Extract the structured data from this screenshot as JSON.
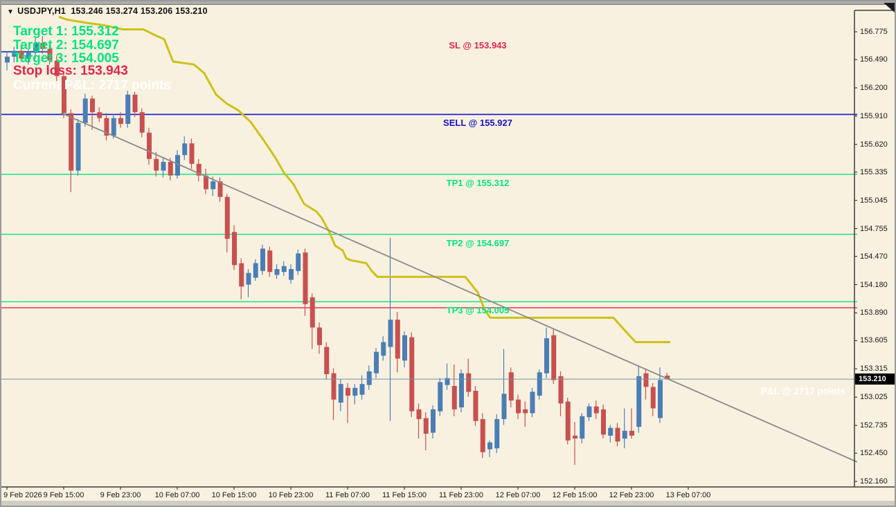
{
  "window": {
    "title": {
      "indicator": "▼",
      "symbol": "USDJPY,H1",
      "quotes": "153.246 153.274 153.206 153.210"
    }
  },
  "overlay_left": {
    "target1": "Target 1: 155.312",
    "target2": "Target 2: 154.697",
    "target3": "Target 3: 154.005",
    "stop_loss": "Stop loss: 153.943",
    "current_pnl": "Current P&L: 2717 points"
  },
  "overlay_right": {
    "pnl": "P&L @ 2717 points"
  },
  "levels": [
    {
      "id": "sell",
      "label": "SELL @ 155.927",
      "price": 155.927,
      "color": "#1212cc",
      "placement": "below"
    },
    {
      "id": "tp1",
      "label": "TP1 @ 155.312",
      "price": 155.312,
      "color": "#00e57d",
      "placement": "below"
    },
    {
      "id": "tp2",
      "label": "TP2 @ 154.697",
      "price": 154.697,
      "color": "#00e57d",
      "placement": "below"
    },
    {
      "id": "tp3",
      "label": "TP3 @ 154.005",
      "price": 154.005,
      "color": "#00e57d",
      "placement": "below"
    },
    {
      "id": "sl",
      "label": "SL @ 153.943",
      "price": 153.943,
      "color": "#e3254b",
      "placement": "top"
    }
  ],
  "price_axis": {
    "labels": [
      "156.775",
      "156.490",
      "156.200",
      "155.910",
      "155.620",
      "155.335",
      "155.045",
      "154.755",
      "154.470",
      "154.180",
      "153.890",
      "153.605",
      "153.315",
      "153.025",
      "152.735",
      "152.450",
      "152.160"
    ],
    "current": "153.210"
  },
  "time_axis": {
    "labels": [
      "9 Feb 2026",
      "9 Feb 15:00",
      "9 Feb 23:00",
      "10 Feb 07:00",
      "10 Feb 15:00",
      "10 Feb 23:00",
      "11 Feb 07:00",
      "11 Feb 15:00",
      "11 Feb 23:00",
      "12 Feb 07:00",
      "12 Feb 15:00",
      "12 Feb 23:00",
      "13 Feb 07:00"
    ]
  },
  "colors": {
    "background": "#f9f1e0",
    "bull": "#4a7eb5",
    "bear": "#c8504f",
    "indicator_yellow": "#cdc117",
    "trendline_gray": "#8a8a8a",
    "price_line": "#6d93a8",
    "frame": "#3a3a3a",
    "badge_bg": "#000000",
    "badge_text": "#ffffff",
    "entry_segment_blue": "#2b50bd"
  },
  "chart_data": {
    "type": "candlestick",
    "symbol": "USDJPY",
    "timeframe": "H1",
    "ylim": [
      152.16,
      156.775
    ],
    "grid": false,
    "current_price": 153.21,
    "levels": {
      "sell": 155.927,
      "tp1": 155.312,
      "tp2": 154.697,
      "tp3": 154.005,
      "sl": 153.943
    },
    "candles": [
      [
        156.46,
        156.56,
        156.38,
        156.52
      ],
      [
        156.52,
        156.62,
        156.46,
        156.58
      ],
      [
        156.58,
        156.65,
        156.47,
        156.5
      ],
      [
        156.5,
        156.6,
        156.44,
        156.56
      ],
      [
        156.56,
        156.71,
        156.5,
        156.66
      ],
      [
        156.66,
        156.73,
        156.55,
        156.6
      ],
      [
        156.6,
        156.66,
        156.44,
        156.48
      ],
      [
        156.48,
        156.53,
        156.27,
        156.32
      ],
      [
        156.32,
        156.37,
        155.89,
        155.94
      ],
      [
        155.94,
        155.98,
        155.13,
        155.35
      ],
      [
        155.35,
        155.88,
        155.3,
        155.84
      ],
      [
        155.84,
        156.14,
        155.8,
        156.09
      ],
      [
        156.09,
        156.12,
        155.77,
        155.95
      ],
      [
        155.95,
        156.0,
        155.85,
        155.89
      ],
      [
        155.89,
        155.94,
        155.66,
        155.71
      ],
      [
        155.71,
        155.93,
        155.68,
        155.89
      ],
      [
        155.89,
        155.95,
        155.79,
        155.83
      ],
      [
        155.83,
        156.17,
        155.79,
        156.13
      ],
      [
        156.13,
        156.16,
        155.9,
        155.95
      ],
      [
        155.95,
        155.99,
        155.69,
        155.74
      ],
      [
        155.74,
        155.79,
        155.41,
        155.47
      ],
      [
        155.47,
        155.54,
        155.29,
        155.35
      ],
      [
        155.35,
        155.49,
        155.28,
        155.44
      ],
      [
        155.44,
        155.48,
        155.25,
        155.3
      ],
      [
        155.3,
        155.56,
        155.27,
        155.51
      ],
      [
        155.51,
        155.7,
        155.46,
        155.63
      ],
      [
        155.63,
        155.68,
        155.37,
        155.42
      ],
      [
        155.42,
        155.47,
        155.24,
        155.3
      ],
      [
        155.3,
        155.37,
        155.11,
        155.16
      ],
      [
        155.16,
        155.29,
        155.09,
        155.24
      ],
      [
        155.24,
        155.28,
        155.03,
        155.08
      ],
      [
        155.08,
        155.11,
        154.51,
        154.65
      ],
      [
        154.72,
        154.79,
        154.33,
        154.38
      ],
      [
        154.4,
        154.45,
        154.03,
        154.16
      ],
      [
        154.18,
        154.34,
        154.05,
        154.3
      ],
      [
        154.25,
        154.44,
        154.22,
        154.4
      ],
      [
        154.32,
        154.59,
        154.28,
        154.55
      ],
      [
        154.53,
        154.57,
        154.26,
        154.31
      ],
      [
        154.28,
        154.39,
        154.24,
        154.34
      ],
      [
        154.31,
        154.42,
        154.27,
        154.37
      ],
      [
        154.23,
        154.39,
        154.19,
        154.34
      ],
      [
        154.32,
        154.54,
        154.28,
        154.5
      ],
      [
        154.51,
        154.55,
        153.86,
        153.98
      ],
      [
        154.05,
        154.09,
        153.52,
        153.74
      ],
      [
        153.74,
        153.79,
        153.47,
        153.56
      ],
      [
        153.54,
        153.59,
        153.21,
        153.26
      ],
      [
        153.27,
        153.32,
        152.79,
        153.0
      ],
      [
        152.97,
        153.21,
        152.88,
        153.16
      ],
      [
        153.12,
        153.17,
        152.76,
        153.04
      ],
      [
        153.04,
        153.16,
        152.95,
        153.12
      ],
      [
        153.05,
        153.25,
        153.0,
        153.16
      ],
      [
        153.15,
        153.35,
        153.1,
        153.29
      ],
      [
        153.27,
        153.53,
        153.22,
        153.49
      ],
      [
        153.45,
        153.65,
        153.4,
        153.59
      ],
      [
        153.54,
        154.66,
        152.78,
        153.82
      ],
      [
        153.82,
        153.9,
        153.28,
        153.42
      ],
      [
        153.4,
        153.7,
        153.33,
        153.66
      ],
      [
        153.64,
        153.69,
        152.82,
        152.88
      ],
      [
        152.9,
        152.96,
        152.6,
        152.8
      ],
      [
        152.81,
        152.87,
        152.48,
        152.65
      ],
      [
        152.66,
        152.94,
        152.6,
        152.9
      ],
      [
        152.88,
        153.22,
        152.83,
        153.18
      ],
      [
        153.15,
        153.37,
        153.1,
        153.22
      ],
      [
        153.14,
        153.36,
        152.83,
        152.9
      ],
      [
        152.92,
        153.31,
        152.87,
        153.27
      ],
      [
        153.27,
        153.42,
        153.03,
        153.08
      ],
      [
        153.09,
        153.14,
        152.73,
        152.78
      ],
      [
        152.8,
        152.86,
        152.4,
        152.46
      ],
      [
        152.49,
        152.58,
        152.41,
        152.56
      ],
      [
        152.5,
        152.85,
        152.45,
        152.8
      ],
      [
        152.8,
        153.52,
        152.74,
        153.06
      ],
      [
        153.28,
        153.33,
        152.92,
        152.99
      ],
      [
        153.0,
        153.05,
        152.8,
        152.86
      ],
      [
        152.9,
        152.98,
        152.72,
        152.86
      ],
      [
        152.86,
        153.12,
        152.82,
        153.08
      ],
      [
        153.04,
        153.31,
        153.0,
        153.28
      ],
      [
        153.27,
        153.74,
        153.22,
        153.63
      ],
      [
        153.66,
        153.72,
        153.16,
        153.2
      ],
      [
        153.24,
        153.29,
        152.83,
        152.96
      ],
      [
        152.98,
        153.02,
        152.54,
        152.58
      ],
      [
        152.63,
        152.77,
        152.33,
        152.6
      ],
      [
        152.6,
        152.86,
        152.55,
        152.83
      ],
      [
        152.82,
        152.96,
        152.78,
        152.93
      ],
      [
        152.93,
        152.99,
        152.8,
        152.86
      ],
      [
        152.9,
        152.95,
        152.6,
        152.64
      ],
      [
        152.63,
        152.74,
        152.56,
        152.71
      ],
      [
        152.71,
        152.76,
        152.52,
        152.57
      ],
      [
        152.6,
        152.91,
        152.5,
        152.68
      ],
      [
        152.68,
        152.91,
        152.6,
        152.63
      ],
      [
        152.72,
        153.35,
        152.66,
        153.24
      ],
      [
        153.27,
        153.31,
        153.0,
        153.13
      ],
      [
        153.13,
        153.17,
        152.83,
        152.91
      ],
      [
        152.81,
        153.33,
        152.76,
        153.2
      ],
      [
        153.246,
        153.274,
        153.206,
        153.21
      ]
    ],
    "indicator_line": {
      "name": "yellow-step-indicator",
      "points": [
        [
          83,
          156.93
        ],
        [
          95,
          156.9
        ],
        [
          120,
          156.87
        ],
        [
          150,
          156.84
        ],
        [
          175,
          156.8
        ],
        [
          205,
          156.8
        ],
        [
          222,
          156.74
        ],
        [
          235,
          156.7
        ],
        [
          248,
          156.47
        ],
        [
          278,
          156.44
        ],
        [
          293,
          156.35
        ],
        [
          310,
          156.13
        ],
        [
          325,
          156.04
        ],
        [
          342,
          155.97
        ],
        [
          360,
          155.85
        ],
        [
          377,
          155.68
        ],
        [
          395,
          155.49
        ],
        [
          408,
          155.33
        ],
        [
          422,
          155.21
        ],
        [
          437,
          155.01
        ],
        [
          455,
          154.93
        ],
        [
          462,
          154.87
        ],
        [
          473,
          154.73
        ],
        [
          482,
          154.58
        ],
        [
          493,
          154.53
        ],
        [
          498,
          154.45
        ],
        [
          505,
          154.43
        ],
        [
          527,
          154.4
        ],
        [
          535,
          154.32
        ],
        [
          543,
          154.26
        ],
        [
          670,
          154.26
        ],
        [
          688,
          154.1
        ],
        [
          698,
          153.92
        ],
        [
          706,
          153.84
        ],
        [
          884,
          153.84
        ],
        [
          899,
          153.72
        ],
        [
          916,
          153.59
        ],
        [
          966,
          153.59
        ]
      ]
    },
    "trendline": {
      "x1": 87,
      "price1": 155.94,
      "x2": 1236,
      "price2": 152.36
    },
    "entry_segment": {
      "x1": 0,
      "x2": 73,
      "price": 156.57
    }
  }
}
